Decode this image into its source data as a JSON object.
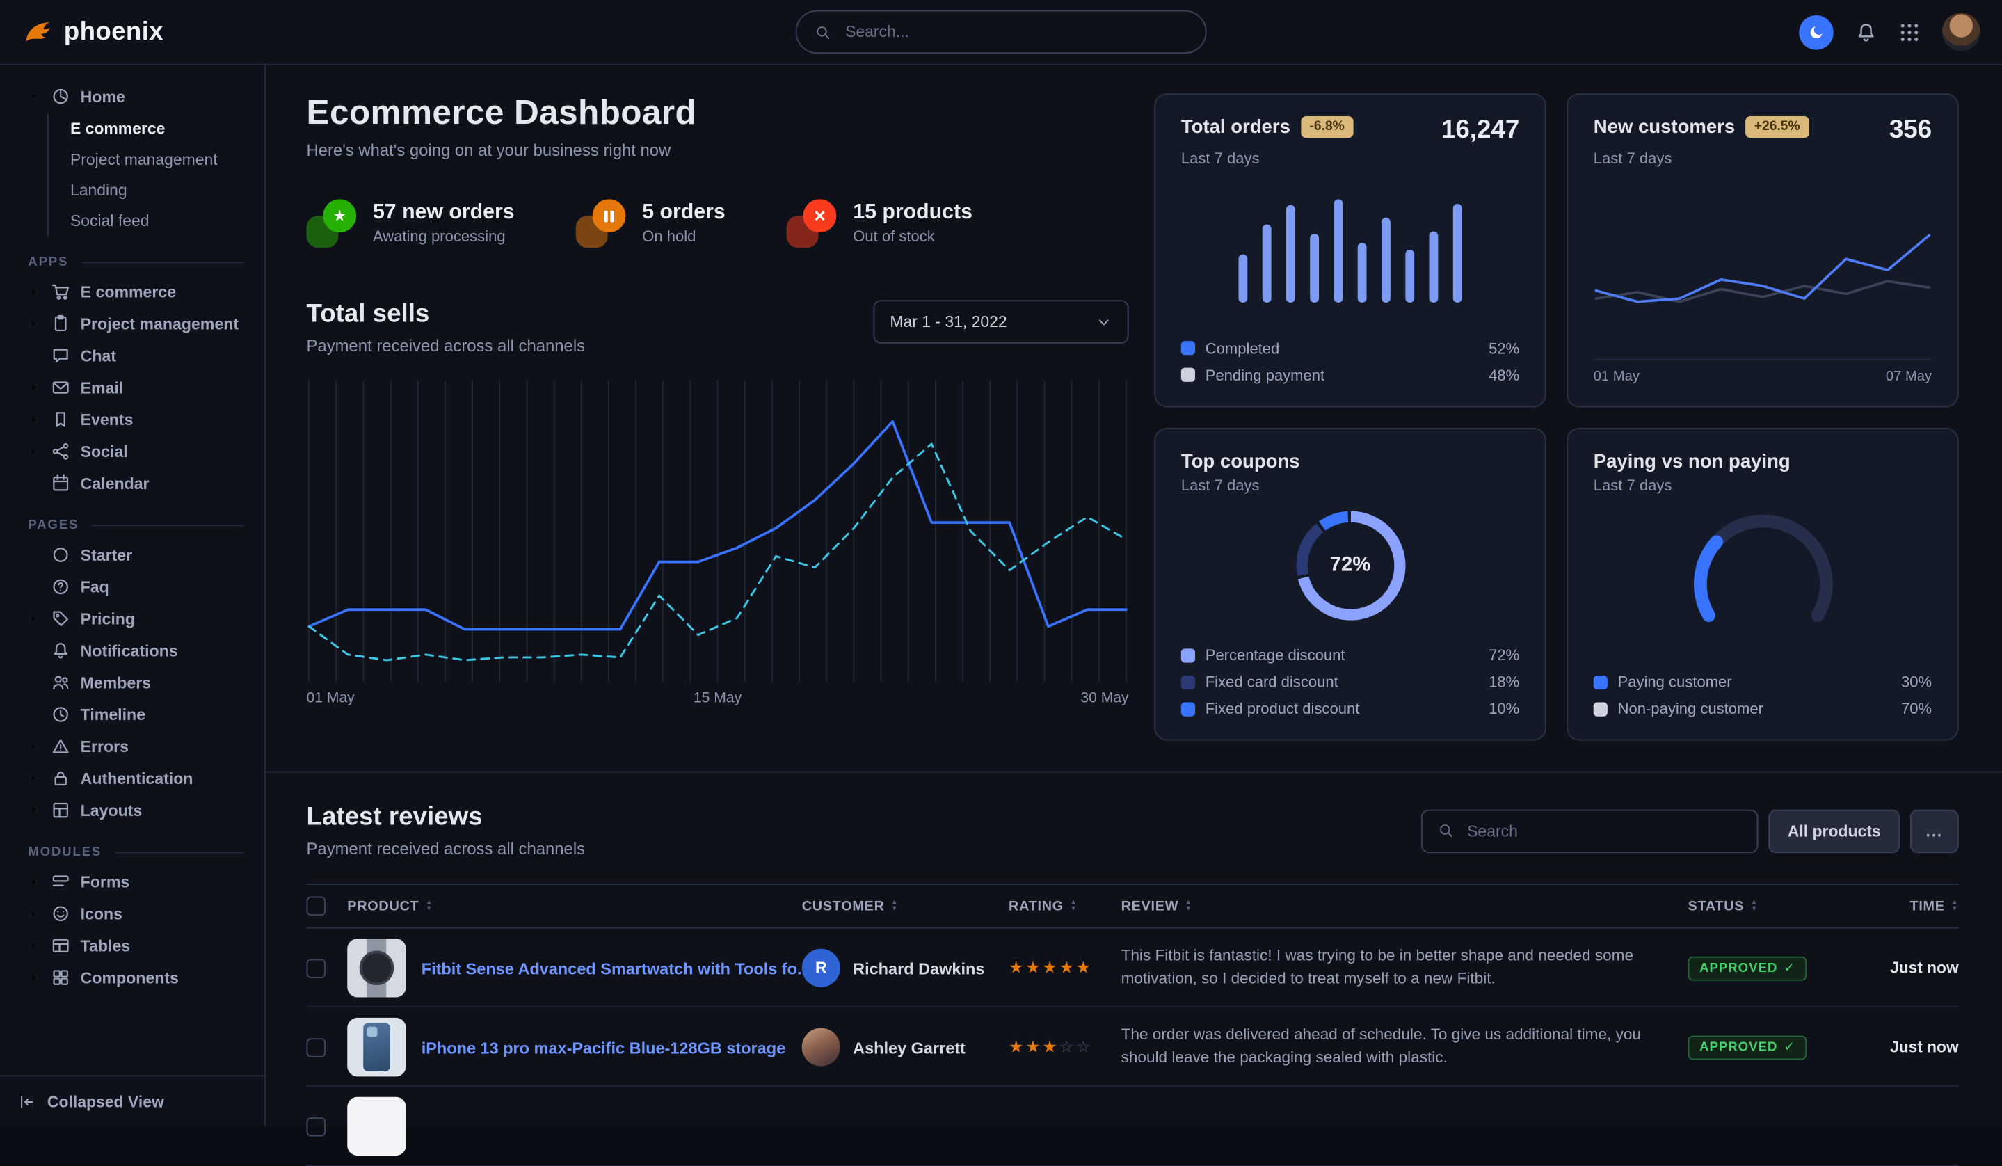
{
  "brand": {
    "name": "phoenix"
  },
  "navbar": {
    "search_placeholder": "Search...",
    "icons": {
      "search": "search",
      "theme_toggle": "moon",
      "notifications": "bell",
      "app_launcher": "grid-9",
      "avatar": "user-photo"
    }
  },
  "sidebar": {
    "home": {
      "label": "Home",
      "icon": "pie-chart",
      "children": [
        {
          "label": "E commerce",
          "active": true
        },
        {
          "label": "Project management",
          "active": false
        },
        {
          "label": "Landing",
          "active": false
        },
        {
          "label": "Social feed",
          "active": false
        }
      ]
    },
    "sections": [
      {
        "title": "APPS",
        "items": [
          {
            "label": "E commerce",
            "icon": "cart",
            "expandable": true
          },
          {
            "label": "Project management",
            "icon": "clipboard",
            "expandable": true
          },
          {
            "label": "Chat",
            "icon": "chat",
            "expandable": false
          },
          {
            "label": "Email",
            "icon": "envelope",
            "expandable": true
          },
          {
            "label": "Events",
            "icon": "bookmark",
            "expandable": true
          },
          {
            "label": "Social",
            "icon": "share",
            "expandable": true
          },
          {
            "label": "Calendar",
            "icon": "calendar",
            "expandable": false
          }
        ]
      },
      {
        "title": "PAGES",
        "items": [
          {
            "label": "Starter",
            "icon": "circle",
            "expandable": false
          },
          {
            "label": "Faq",
            "icon": "question",
            "expandable": false
          },
          {
            "label": "Pricing",
            "icon": "tag",
            "expandable": true
          },
          {
            "label": "Notifications",
            "icon": "bell",
            "expandable": false
          },
          {
            "label": "Members",
            "icon": "users",
            "expandable": false
          },
          {
            "label": "Timeline",
            "icon": "clock",
            "expandable": false
          },
          {
            "label": "Errors",
            "icon": "warning",
            "expandable": true
          },
          {
            "label": "Authentication",
            "icon": "lock",
            "expandable": true
          },
          {
            "label": "Layouts",
            "icon": "layout",
            "expandable": true
          }
        ]
      },
      {
        "title": "MODULES",
        "items": [
          {
            "label": "Forms",
            "icon": "form",
            "expandable": true
          },
          {
            "label": "Icons",
            "icon": "smile",
            "expandable": true
          },
          {
            "label": "Tables",
            "icon": "table",
            "expandable": true
          },
          {
            "label": "Components",
            "icon": "grid-4",
            "expandable": true
          }
        ]
      }
    ],
    "footer": {
      "label": "Collapsed View",
      "icon": "collapse-left"
    }
  },
  "hero": {
    "title": "Ecommerce Dashboard",
    "subtitle": "Here's what's going on at your business right now",
    "stats": [
      {
        "value": "57 new orders",
        "caption": "Awating processing",
        "icon": "star",
        "color": "#25b003"
      },
      {
        "value": "5 orders",
        "caption": "On hold",
        "icon": "pause",
        "color": "#e5780b"
      },
      {
        "value": "15 products",
        "caption": "Out of stock",
        "icon": "cross",
        "color": "#fa3b1d"
      }
    ]
  },
  "total_sells": {
    "title": "Total sells",
    "subtitle": "Payment received across all channels",
    "date_range": "Mar 1 - 31, 2022",
    "x_labels": [
      "01 May",
      "15 May",
      "30 May"
    ]
  },
  "cards": {
    "total_orders": {
      "title": "Total orders",
      "badge": "-6.8%",
      "period": "Last 7 days",
      "value": "16,247",
      "legend": [
        {
          "label": "Completed",
          "value": "52%",
          "color": "#3874ff"
        },
        {
          "label": "Pending payment",
          "value": "48%",
          "color": "#cdd2de"
        }
      ]
    },
    "new_customers": {
      "title": "New customers",
      "badge": "+26.5%",
      "period": "Last 7 days",
      "value": "356",
      "x_labels": [
        "01 May",
        "07 May"
      ]
    },
    "top_coupons": {
      "title": "Top coupons",
      "period": "Last 7 days",
      "center_label": "72%",
      "legend": [
        {
          "label": "Percentage discount",
          "value": "72%",
          "color": "#8ba2ff"
        },
        {
          "label": "Fixed card discount",
          "value": "18%",
          "color": "#2b3a74"
        },
        {
          "label": "Fixed product discount",
          "value": "10%",
          "color": "#3874ff"
        }
      ]
    },
    "paying": {
      "title": "Paying vs non paying",
      "period": "Last 7 days",
      "legend": [
        {
          "label": "Paying customer",
          "value": "30%",
          "color": "#3874ff"
        },
        {
          "label": "Non-paying customer",
          "value": "70%",
          "color": "#cdd2de"
        }
      ]
    }
  },
  "reviews": {
    "title": "Latest reviews",
    "subtitle": "Payment received across all channels",
    "search_placeholder": "Search",
    "filter_button": "All products",
    "more_button": "...",
    "columns": [
      "PRODUCT",
      "CUSTOMER",
      "RATING",
      "REVIEW",
      "STATUS",
      "TIME"
    ],
    "rows": [
      {
        "product": "Fitbit Sense Advanced Smartwatch with Tools fo...",
        "thumb": "smartwatch",
        "customer": "Richard Dawkins",
        "avatar": "initial",
        "avatar_initial": "R",
        "rating": 5,
        "review": "This Fitbit is fantastic! I was trying to be in better shape and needed some motivation, so I decided to treat myself to a new Fitbit.",
        "status": "APPROVED",
        "time": "Just now"
      },
      {
        "product": "iPhone 13 pro max-Pacific Blue-128GB storage",
        "thumb": "phone",
        "customer": "Ashley Garrett",
        "avatar": "photo",
        "avatar_initial": "",
        "rating": 3,
        "review": "The order was delivered ahead of schedule. To give us additional time, you should leave the packaging sealed with plastic.",
        "status": "APPROVED",
        "time": "Just now"
      }
    ]
  },
  "chart_data": [
    {
      "id": "total_sells",
      "type": "line",
      "title": "Total sells",
      "x_ticks": [
        "01 May",
        "15 May",
        "30 May"
      ],
      "ylim": [
        0,
        100
      ],
      "grid": "vertical",
      "series": [
        {
          "name": "current period",
          "style": "solid",
          "color": "#3874ff",
          "values": [
            17,
            23,
            23,
            23,
            16,
            16,
            16,
            16,
            16,
            40,
            40,
            45,
            52,
            62,
            75,
            90,
            54,
            54,
            54,
            17,
            23,
            23
          ]
        },
        {
          "name": "previous period",
          "style": "dashed",
          "color": "#3cc7e6",
          "values": [
            17,
            7,
            5,
            7,
            5,
            6,
            6,
            7,
            6,
            28,
            14,
            20,
            42,
            38,
            52,
            70,
            82,
            51,
            37,
            47,
            56,
            48
          ]
        }
      ]
    },
    {
      "id": "total_orders",
      "type": "bar",
      "color": "#7e9bf3",
      "ylim": [
        0,
        100
      ],
      "values": [
        42,
        68,
        85,
        60,
        90,
        52,
        74,
        46,
        62,
        86
      ],
      "legend": [
        {
          "label": "Completed",
          "value": 52
        },
        {
          "label": "Pending payment",
          "value": 48
        }
      ]
    },
    {
      "id": "new_customers",
      "type": "line",
      "x_ticks": [
        "01 May",
        "07 May"
      ],
      "ylim": [
        0,
        100
      ],
      "series": [
        {
          "name": "previous",
          "style": "solid",
          "color": "#3a4358",
          "values": [
            30,
            34,
            28,
            36,
            31,
            38,
            33,
            41,
            37
          ]
        },
        {
          "name": "current",
          "style": "solid",
          "color": "#4f7cf7",
          "values": [
            35,
            28,
            30,
            42,
            38,
            30,
            55,
            48,
            70
          ]
        }
      ]
    },
    {
      "id": "top_coupons",
      "type": "donut",
      "center_label": "72%",
      "slices": [
        {
          "label": "Percentage discount",
          "value": 72,
          "color": "#8ba2ff"
        },
        {
          "label": "Fixed card discount",
          "value": 18,
          "color": "#2b3a74"
        },
        {
          "label": "Fixed product discount",
          "value": 10,
          "color": "#3874ff"
        }
      ]
    },
    {
      "id": "paying_vs_non_paying",
      "type": "gauge",
      "slices": [
        {
          "label": "Paying customer",
          "value": 30,
          "color": "#3874ff"
        },
        {
          "label": "Non-paying customer",
          "value": 70,
          "color": "#252e4a"
        }
      ]
    }
  ]
}
